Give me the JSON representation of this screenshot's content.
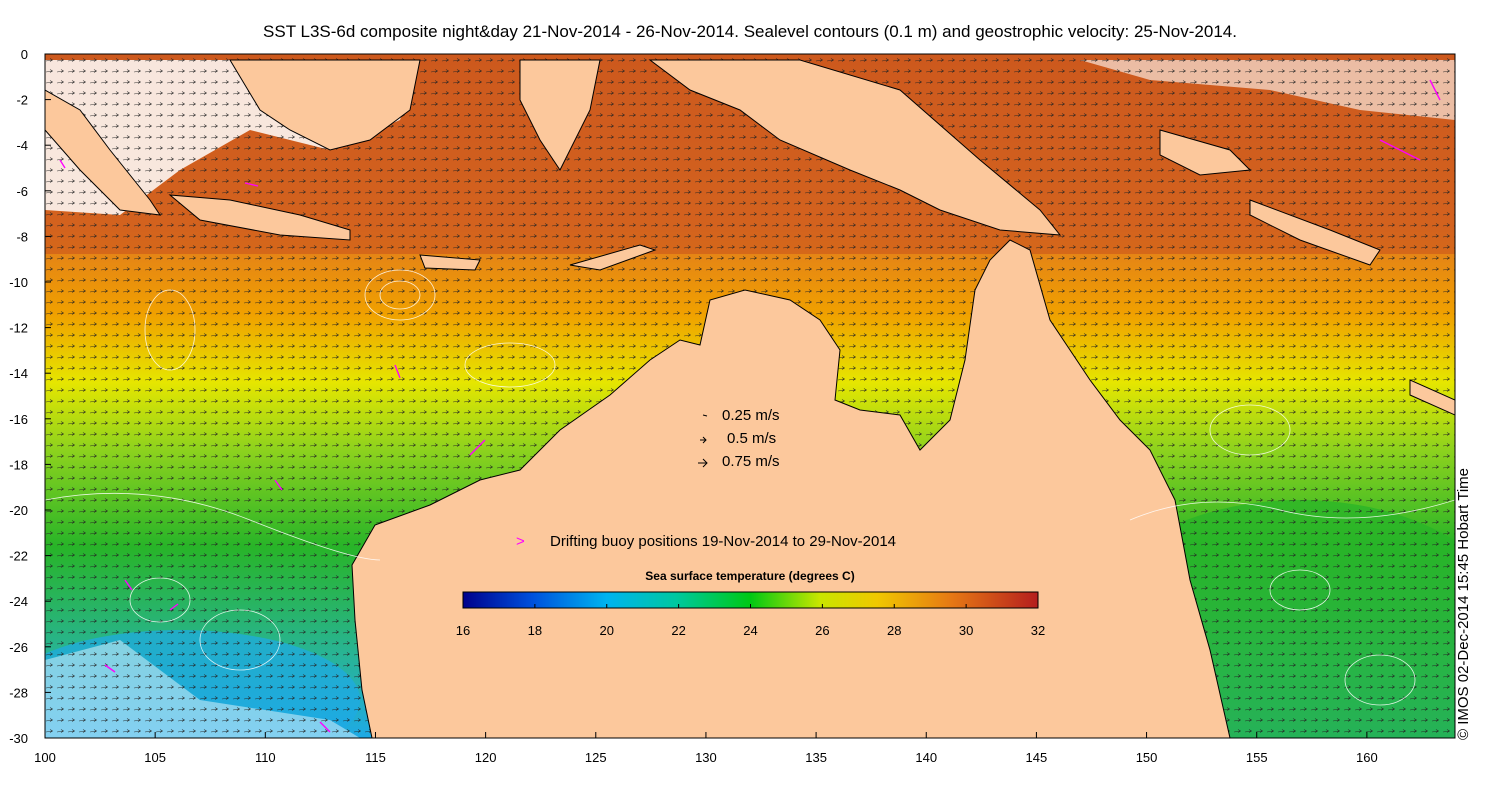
{
  "title": "SST L3S-6d composite night&day 21-Nov-2014 - 26-Nov-2014. Sealevel contours (0.1 m) and geostrophic velocity: 25-Nov-2014.",
  "credit": "© IMOS 02-Dec-2014 15:45 Hobart Time",
  "axes": {
    "x_ticks": [
      "100",
      "105",
      "110",
      "115",
      "120",
      "125",
      "130",
      "135",
      "140",
      "145",
      "150",
      "155",
      "160"
    ],
    "y_ticks": [
      "0",
      "-2",
      "-4",
      "-6",
      "-8",
      "-10",
      "-12",
      "-14",
      "-16",
      "-18",
      "-20",
      "-22",
      "-24",
      "-26",
      "-28",
      "-30"
    ],
    "lon_range": [
      100,
      164
    ],
    "lat_range": [
      -30,
      0
    ]
  },
  "velocity_legend": [
    {
      "label": "0.25 m/s",
      "speed": 0.25
    },
    {
      "label": "0.5 m/s",
      "speed": 0.5
    },
    {
      "label": "0.75 m/s",
      "speed": 0.75
    }
  ],
  "buoy_legend": {
    "label": "Drifting buoy positions 19-Nov-2014 to 29-Nov-2014",
    "marker": ">",
    "color": "#ff00ff"
  },
  "colorbar": {
    "title": "Sea surface temperature (degrees C)",
    "ticks": [
      "16",
      "18",
      "20",
      "22",
      "24",
      "26",
      "28",
      "30",
      "32"
    ],
    "range": [
      16,
      32
    ]
  },
  "colors": {
    "land": "#fcc89c",
    "ocean_hot": "#c8501e",
    "ocean_warm": "#f0a000",
    "ocean_mild": "#e6e600",
    "ocean_cool": "#32c832",
    "ocean_cold": "#14b4e6",
    "buoy": "#ff00ff"
  }
}
